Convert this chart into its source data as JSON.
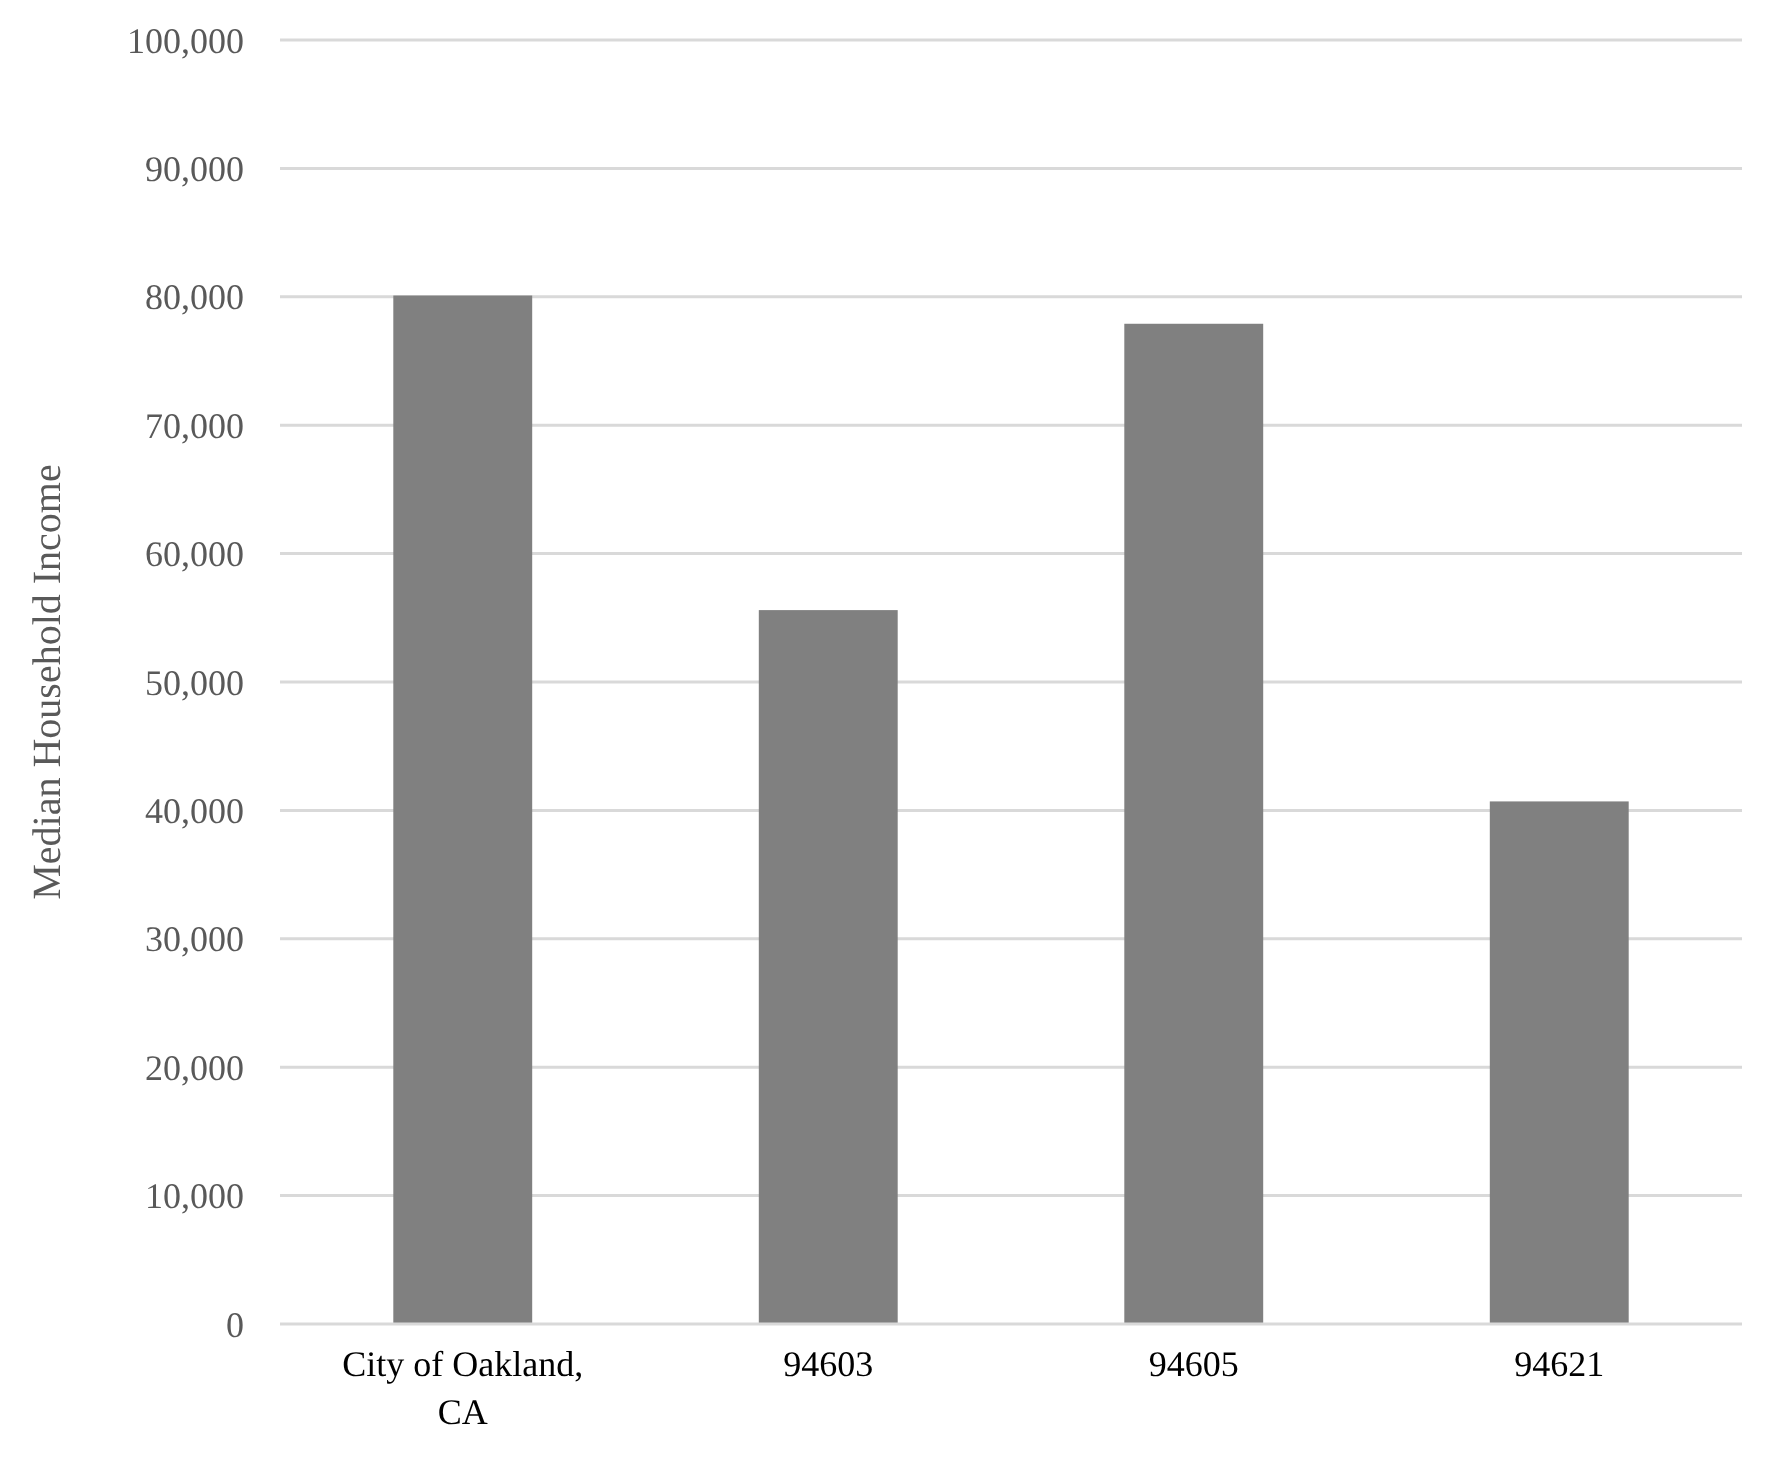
{
  "chart_data": {
    "type": "bar",
    "ylabel": "Median Household Income",
    "categories": [
      "City of Oakland, CA",
      "94603",
      "94605",
      "94621"
    ],
    "values": [
      80100,
      55600,
      77900,
      40700
    ],
    "color": "#808080",
    "ylim": [
      0,
      100000
    ],
    "yticks": [
      {
        "value": 0,
        "label": "0"
      },
      {
        "value": 10000,
        "label": "10,000"
      },
      {
        "value": 20000,
        "label": "20,000"
      },
      {
        "value": 30000,
        "label": "30,000"
      },
      {
        "value": 40000,
        "label": "40,000"
      },
      {
        "value": 50000,
        "label": "50,000"
      },
      {
        "value": 60000,
        "label": "60,000"
      },
      {
        "value": 70000,
        "label": "70,000"
      },
      {
        "value": 80000,
        "label": "80,000"
      },
      {
        "value": 90000,
        "label": "90,000"
      },
      {
        "value": 100000,
        "label": "100,000"
      }
    ],
    "grid": "y"
  }
}
